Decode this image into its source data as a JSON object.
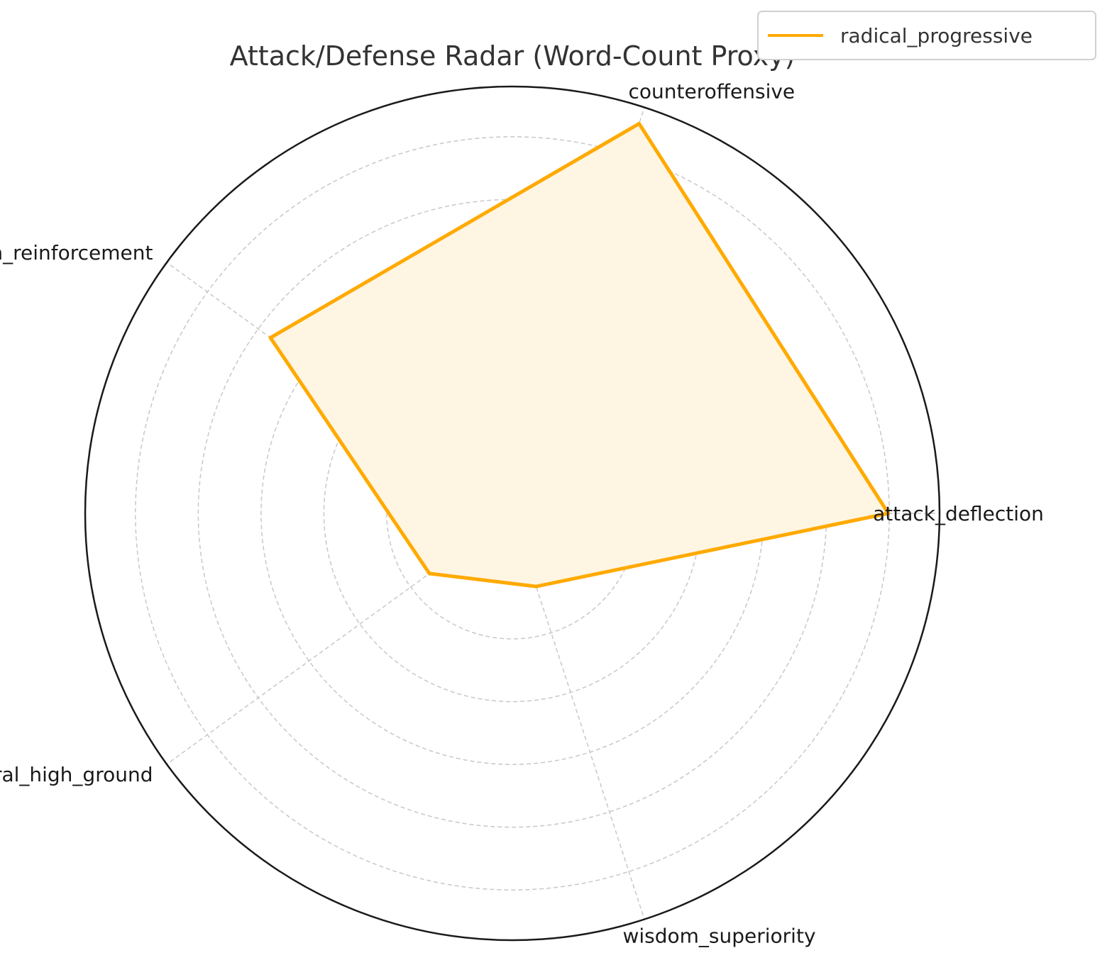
{
  "chart_data": {
    "type": "radar",
    "title": "Attack/Defense Radar (Word-Count Proxy)",
    "categories": [
      "attack_deflection",
      "counteroffensive",
      "position_reinforcement",
      "moral_high_ground",
      "wisdom_superiority"
    ],
    "series": [
      {
        "name": "radical_progressive",
        "values": [
          0.88,
          0.96,
          0.7,
          0.24,
          0.18
        ],
        "color": "#ffaa00",
        "fill": "#fff5e3"
      }
    ],
    "rmax": 1.0,
    "grid_rings": 6,
    "grid": true,
    "legend": "top-right",
    "colors": {
      "grid": "#c8c8c8",
      "frame": "#1a1a1a"
    }
  }
}
